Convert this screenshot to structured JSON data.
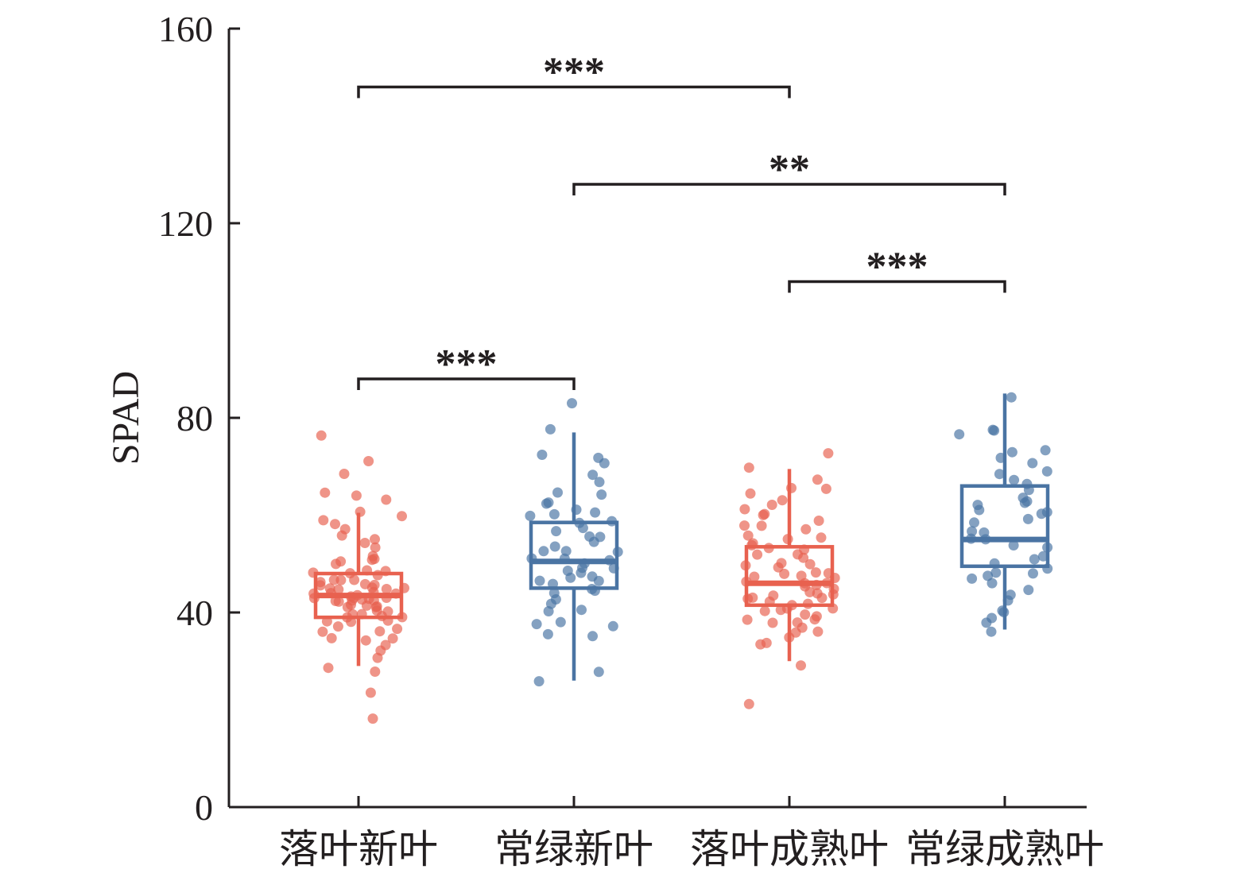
{
  "chart_data": {
    "type": "box",
    "ylabel": "SPAD",
    "xlabel": "",
    "ylim": [
      0,
      160
    ],
    "yticks": [
      0,
      40,
      80,
      120,
      160
    ],
    "categories": [
      "落叶新叶",
      "常绿新叶",
      "落叶成熟叶",
      "常绿成熟叶"
    ],
    "colors": {
      "deciduous": "#e8614f",
      "evergreen": "#4a74a3"
    },
    "boxes": [
      {
        "category": "落叶新叶",
        "color_key": "deciduous",
        "whisker_low": 29,
        "q1": 39,
        "median": 43.5,
        "q3": 48,
        "whisker_high": 60.5
      },
      {
        "category": "常绿新叶",
        "color_key": "evergreen",
        "whisker_low": 26,
        "q1": 45,
        "median": 50.5,
        "q3": 58.5,
        "whisker_high": 77
      },
      {
        "category": "落叶成熟叶",
        "color_key": "deciduous",
        "whisker_low": 30,
        "q1": 41.5,
        "median": 46,
        "q3": 53.5,
        "whisker_high": 69.5
      },
      {
        "category": "常绿成熟叶",
        "color_key": "evergreen",
        "whisker_low": 36.5,
        "q1": 49.5,
        "median": 55,
        "q3": 66,
        "whisker_high": 85
      }
    ],
    "points": [
      {
        "category": "落叶新叶",
        "values": [
          18,
          24,
          28,
          29,
          31,
          32,
          33,
          34,
          35,
          35,
          36,
          36,
          37,
          37,
          38,
          38,
          38,
          39,
          39,
          39,
          40,
          40,
          40,
          40,
          41,
          41,
          41,
          41,
          42,
          42,
          42,
          42,
          42,
          43,
          43,
          43,
          43,
          43,
          43,
          44,
          44,
          44,
          44,
          44,
          45,
          45,
          45,
          45,
          45,
          46,
          46,
          46,
          46,
          47,
          47,
          47,
          48,
          48,
          48,
          49,
          49,
          50,
          50,
          51,
          51,
          52,
          53,
          54,
          55,
          56,
          57,
          58,
          59,
          60,
          61,
          63,
          64,
          65,
          68,
          71,
          76
        ]
      },
      {
        "category": "常绿新叶",
        "values": [
          25.5,
          28,
          35,
          35.5,
          37,
          38,
          38.5,
          40,
          41,
          42,
          43,
          44,
          44.5,
          45,
          45.5,
          46,
          46.5,
          47,
          47.5,
          48,
          48.5,
          49,
          49.5,
          50,
          50.5,
          51,
          51.5,
          52,
          52.5,
          53,
          54,
          55,
          55.5,
          56,
          57,
          57.5,
          58,
          59,
          60,
          60.5,
          61,
          61.5,
          62,
          63,
          64,
          65,
          67,
          68,
          71,
          71.5,
          72,
          77.5,
          83
        ]
      },
      {
        "category": "落叶成熟叶",
        "values": [
          21,
          29.5,
          33,
          34,
          35,
          35.5,
          36,
          37,
          37.5,
          38,
          38.5,
          39,
          39.5,
          40,
          40,
          40.5,
          41,
          41,
          41.5,
          42,
          42,
          42.5,
          43,
          43,
          43.5,
          44,
          44,
          44.5,
          45,
          45,
          45.5,
          46,
          46,
          46.5,
          47,
          47,
          47.5,
          48,
          48,
          48.5,
          49,
          49.5,
          50,
          50.5,
          51,
          51.5,
          52,
          52.5,
          53,
          53.5,
          54,
          55,
          55.5,
          56,
          57,
          57.5,
          58,
          59,
          60,
          60.5,
          61,
          62,
          63,
          64,
          65,
          66,
          67,
          69.5,
          73
        ]
      },
      {
        "category": "常绿成熟叶",
        "values": [
          36.5,
          37.5,
          39,
          40,
          40.5,
          42,
          44,
          45,
          46,
          47,
          47.5,
          48,
          48.5,
          49,
          50,
          51,
          52,
          53,
          54,
          55,
          55.5,
          56,
          57,
          58,
          59,
          60,
          60.5,
          61,
          62,
          62.5,
          63,
          64,
          65,
          66,
          67,
          68,
          69,
          71,
          72,
          72.5,
          73,
          76.5,
          77,
          77.5,
          84.5
        ]
      }
    ],
    "significance": [
      {
        "from": "落叶新叶",
        "to": "落叶成熟叶",
        "level": 148,
        "label": "***"
      },
      {
        "from": "常绿新叶",
        "to": "常绿成熟叶",
        "level": 128,
        "label": "**"
      },
      {
        "from": "落叶成熟叶",
        "to": "常绿成熟叶",
        "level": 108,
        "label": "***"
      },
      {
        "from": "落叶新叶",
        "to": "常绿新叶",
        "level": 88,
        "label": "***"
      }
    ]
  }
}
